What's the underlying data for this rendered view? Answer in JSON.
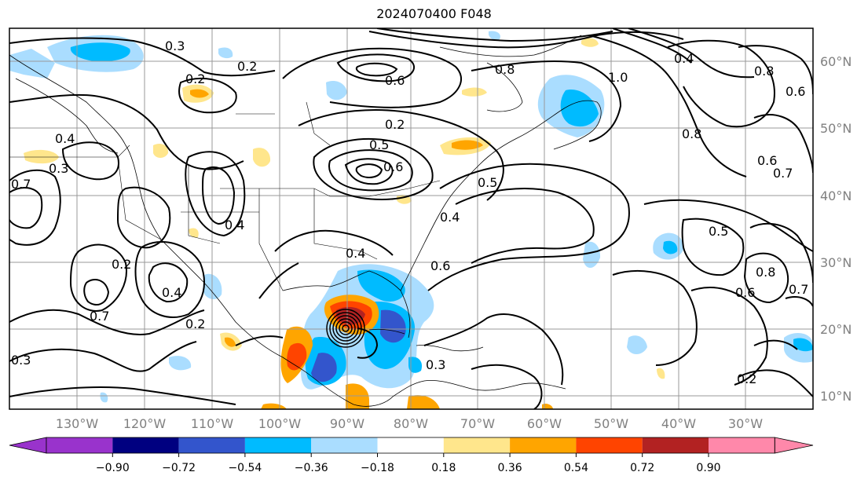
{
  "title": "2024070400 F048",
  "map": {
    "lat_labels": [
      "60°N",
      "50°N",
      "40°N",
      "30°N",
      "20°N",
      "10°N"
    ],
    "lon_labels": [
      "130°W",
      "120°W",
      "110°W",
      "100°W",
      "90°W",
      "80°W",
      "70°W",
      "60°W",
      "50°W",
      "40°W",
      "30°W"
    ],
    "contour_labels": [
      "0.2",
      "0.3",
      "0.4",
      "0.5",
      "0.6",
      "0.7",
      "0.8",
      "1.0"
    ]
  },
  "colorbar": {
    "colors": [
      "#9933cc",
      "#000080",
      "#3355cc",
      "#00bbff",
      "#aaddff",
      "#ffffff",
      "#ffe68c",
      "#ffa500",
      "#ff4400",
      "#b22222",
      "#ff88aa"
    ],
    "tick_labels": [
      "−0.90",
      "−0.72",
      "−0.54",
      "−0.36",
      "−0.18",
      "0.18",
      "0.36",
      "0.54",
      "0.72",
      "0.90"
    ]
  }
}
